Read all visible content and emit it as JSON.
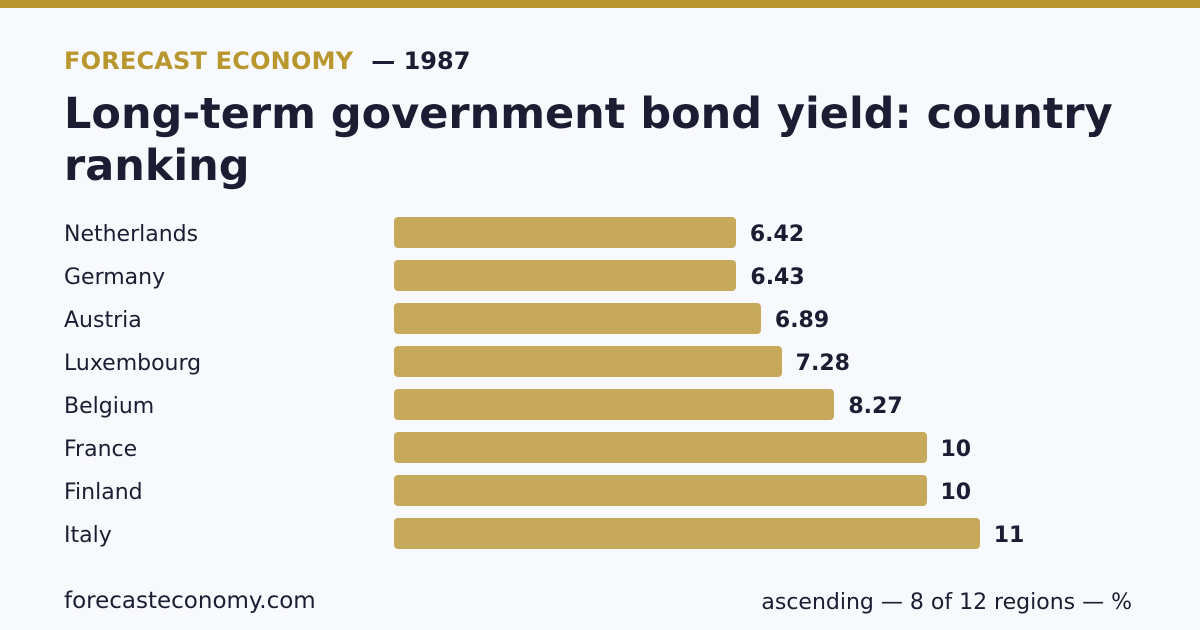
{
  "header": {
    "brand": "FORECAST ECONOMY",
    "year": "— 1987",
    "title": "Long-term government bond yield: country ranking"
  },
  "footer": {
    "site": "forecasteconomy.com",
    "note": "ascending — 8 of 12 regions — %"
  },
  "colors": {
    "accent": "#b8972f",
    "bar": "#c7a95c",
    "text": "#1c1d33",
    "background": "#f8f9fc"
  },
  "chart_data": {
    "type": "bar",
    "orientation": "horizontal",
    "sort": "ascending",
    "categories": [
      "Netherlands",
      "Germany",
      "Austria",
      "Luxembourg",
      "Belgium",
      "France",
      "Finland",
      "Italy"
    ],
    "values": [
      6.42,
      6.43,
      6.89,
      7.28,
      8.27,
      10,
      10,
      11
    ],
    "value_labels": [
      "6.42",
      "6.43",
      "6.89",
      "7.28",
      "8.27",
      "10",
      "10",
      "11"
    ],
    "title": "Long-term government bond yield: country ranking",
    "xlabel": "",
    "ylabel": "",
    "unit": "%",
    "grid": false,
    "legend": "none"
  }
}
